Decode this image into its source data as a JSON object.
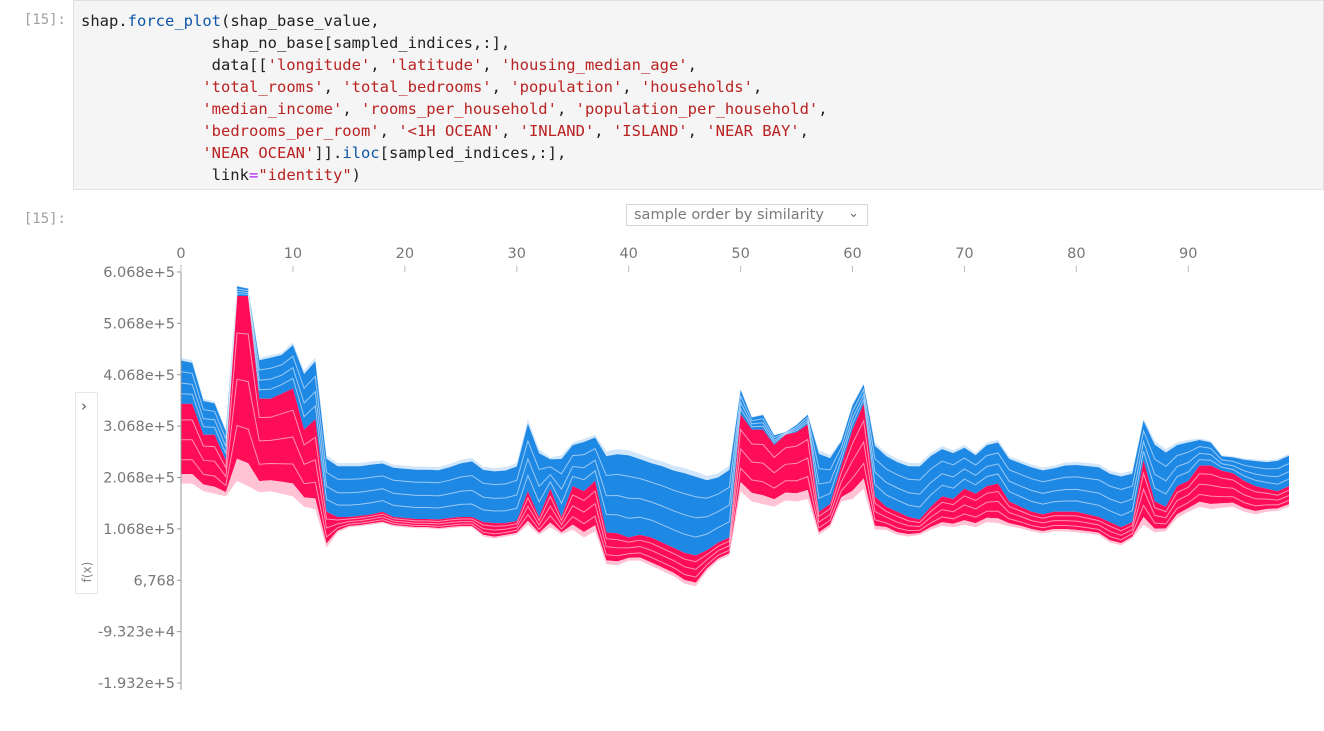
{
  "cell": {
    "input_prompt": "[15]:",
    "output_prompt": "[15]:",
    "code": {
      "l1_a": "shap.",
      "l1_fn": "force_plot",
      "l1_b": "(shap_base_value,",
      "l2": "              shap_no_base[sampled_indices,:],",
      "l3_a": "              data[[",
      "l3_s1": "'longitude'",
      "l3_c1": ", ",
      "l3_s2": "'latitude'",
      "l3_c2": ", ",
      "l3_s3": "'housing_median_age'",
      "l3_c3": ",",
      "l4_pad": "             ",
      "l4_s1": "'total_rooms'",
      "l4_c1": ", ",
      "l4_s2": "'total_bedrooms'",
      "l4_c2": ", ",
      "l4_s3": "'population'",
      "l4_c3": ", ",
      "l4_s4": "'households'",
      "l4_c4": ",",
      "l5_pad": "             ",
      "l5_s1": "'median_income'",
      "l5_c1": ", ",
      "l5_s2": "'rooms_per_household'",
      "l5_c2": ", ",
      "l5_s3": "'population_per_household'",
      "l5_c3": ",",
      "l6_pad": "             ",
      "l6_s1": "'bedrooms_per_room'",
      "l6_c1": ", ",
      "l6_s2": "'<1H OCEAN'",
      "l6_c2": ", ",
      "l6_s3": "'INLAND'",
      "l6_c3": ", ",
      "l6_s4": "'ISLAND'",
      "l6_c4": ", ",
      "l6_s5": "'NEAR BAY'",
      "l6_c5": ",",
      "l7_pad": "             ",
      "l7_s1": "'NEAR OCEAN'",
      "l7_b": "]].",
      "l7_fn": "iloc",
      "l7_c": "[sampled_indices,:],",
      "l8_a": "              link",
      "l8_op": "=",
      "l8_s": "\"identity\"",
      "l8_b": ")"
    }
  },
  "plot": {
    "order_select_value": "sample order by similarity",
    "chevron_icon": "chevron-down-icon",
    "toggle_icon": "chevron-right-icon",
    "y_axis_toggle_label": "f(x)",
    "colors": {
      "positive": "#ff0d57",
      "negative": "#1e88e5",
      "positive_light": "#ffc3d5",
      "negative_light": "#d1e6fa"
    }
  },
  "chart_data": {
    "type": "area",
    "x_ticks": [
      0,
      10,
      20,
      30,
      40,
      50,
      60,
      70,
      80,
      90
    ],
    "y_tick_labels": [
      "6.068e+5",
      "5.068e+5",
      "4.068e+5",
      "3.068e+5",
      "2.068e+5",
      "1.068e+5",
      "6,768",
      "-9.323e+4",
      "-1.932e+5"
    ],
    "y_tick_values": [
      606800,
      506800,
      406800,
      306800,
      206800,
      106800,
      6768,
      -93230,
      -193200
    ],
    "xlim": [
      0,
      99
    ],
    "ylim": [
      -193200,
      606800
    ],
    "samples_x": [
      0,
      1,
      2,
      3,
      4,
      5,
      6,
      7,
      8,
      9,
      10,
      11,
      12,
      13,
      14,
      15,
      16,
      17,
      18,
      19,
      20,
      21,
      22,
      23,
      24,
      25,
      26,
      27,
      28,
      29,
      30,
      31,
      32,
      33,
      34,
      35,
      36,
      37,
      38,
      39,
      40,
      41,
      42,
      43,
      44,
      45,
      46,
      47,
      48,
      49,
      50,
      51,
      52,
      53,
      54,
      55,
      56,
      57,
      58,
      59,
      60,
      61,
      62,
      63,
      64,
      65,
      66,
      67,
      68,
      69,
      70,
      71,
      72,
      73,
      74,
      75,
      76,
      77,
      78,
      79,
      80,
      81,
      82,
      83,
      84,
      85,
      86,
      87,
      88,
      89,
      90,
      91,
      92,
      93,
      94,
      95,
      96,
      97,
      98,
      99
    ],
    "upper_envelope": [
      440000,
      435000,
      360000,
      355000,
      300000,
      580000,
      575000,
      440000,
      445000,
      450000,
      470000,
      415000,
      440000,
      250000,
      235000,
      235000,
      235000,
      238000,
      240000,
      232000,
      230000,
      228000,
      228000,
      227000,
      233000,
      241000,
      245000,
      228000,
      225000,
      227000,
      235000,
      320000,
      262000,
      246000,
      250000,
      275000,
      282000,
      290000,
      258000,
      262000,
      260000,
      252000,
      244000,
      238000,
      230000,
      225000,
      218000,
      210000,
      215000,
      230000,
      380000,
      325000,
      330000,
      290000,
      295000,
      310000,
      330000,
      260000,
      250000,
      280000,
      350000,
      390000,
      275000,
      255000,
      243000,
      235000,
      235000,
      255000,
      268000,
      260000,
      270000,
      255000,
      275000,
      280000,
      248000,
      240000,
      232000,
      226000,
      230000,
      236000,
      237000,
      235000,
      233000,
      220000,
      215000,
      220000,
      322000,
      278000,
      262000,
      275000,
      280000,
      283000,
      278000,
      250000,
      248000,
      244000,
      242000,
      240000,
      243000,
      253000
    ],
    "f_x": [
      350000,
      350000,
      290000,
      290000,
      240000,
      560000,
      560000,
      360000,
      360000,
      370000,
      380000,
      300000,
      320000,
      140000,
      130000,
      130000,
      132000,
      135000,
      140000,
      130000,
      128000,
      126000,
      126000,
      125000,
      128000,
      130000,
      130000,
      120000,
      118000,
      118000,
      122000,
      180000,
      130000,
      185000,
      130000,
      190000,
      180000,
      200000,
      100000,
      98000,
      90000,
      95000,
      90000,
      80000,
      70000,
      60000,
      55000,
      65000,
      80000,
      90000,
      330000,
      300000,
      300000,
      270000,
      290000,
      295000,
      310000,
      140000,
      155000,
      230000,
      300000,
      350000,
      170000,
      150000,
      140000,
      130000,
      125000,
      150000,
      170000,
      165000,
      185000,
      175000,
      190000,
      195000,
      160000,
      150000,
      140000,
      135000,
      140000,
      140000,
      140000,
      135000,
      130000,
      120000,
      110000,
      120000,
      240000,
      160000,
      150000,
      190000,
      200000,
      230000,
      230000,
      220000,
      215000,
      200000,
      190000,
      185000,
      180000,
      190000
    ],
    "lower_envelope": [
      195000,
      195000,
      180000,
      175000,
      170000,
      200000,
      190000,
      178000,
      180000,
      175000,
      170000,
      150000,
      145000,
      70000,
      100000,
      110000,
      112000,
      115000,
      118000,
      112000,
      110000,
      108000,
      108000,
      106000,
      108000,
      110000,
      110000,
      92000,
      88000,
      92000,
      96000,
      115000,
      95000,
      110000,
      96000,
      105000,
      90000,
      102000,
      38000,
      36000,
      45000,
      45000,
      35000,
      25000,
      15000,
      0,
      -5000,
      25000,
      45000,
      55000,
      180000,
      160000,
      155000,
      150000,
      162000,
      160000,
      165000,
      95000,
      110000,
      160000,
      165000,
      185000,
      105000,
      105000,
      95000,
      92000,
      95000,
      105000,
      113000,
      110000,
      115000,
      110000,
      120000,
      118000,
      112000,
      108000,
      102000,
      98000,
      102000,
      102000,
      100000,
      98000,
      95000,
      80000,
      75000,
      88000,
      115000,
      100000,
      102000,
      128000,
      140000,
      150000,
      145000,
      148000,
      150000,
      140000,
      135000,
      140000,
      142000,
      150000
    ]
  }
}
